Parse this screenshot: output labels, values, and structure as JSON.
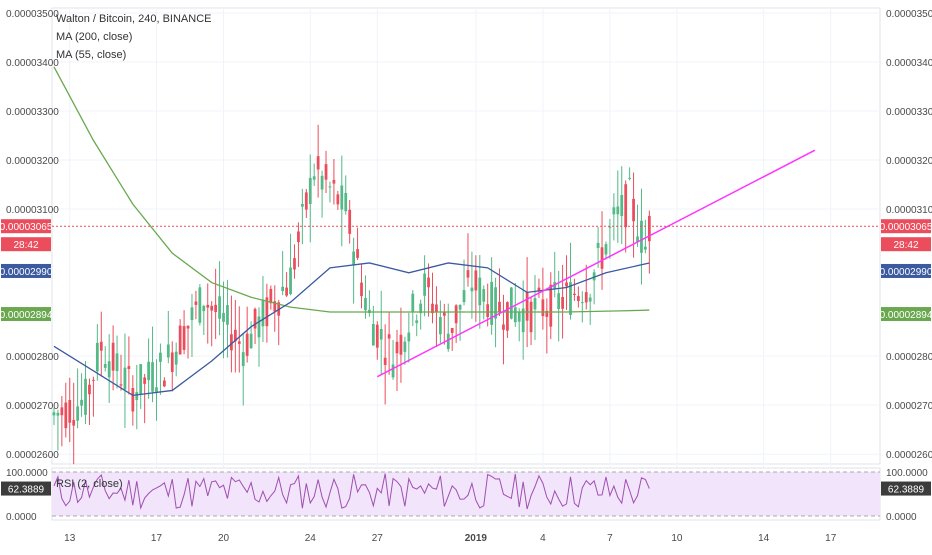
{
  "legend": {
    "title": "Walton / Bitcoin, 240, BINANCE",
    "ma1": "MA (200, close)",
    "ma2": "MA (55, close)",
    "rsi": "RSI (2, close)"
  },
  "colors": {
    "up": "#53b987",
    "down": "#eb4d5c",
    "ma200": "#6aa84f",
    "ma55": "#3c5aa0",
    "trendline": "#ff33ff",
    "rsi_line": "#a04fb0",
    "rsi_band": "#f1e4fb",
    "price_label": "#eb4d5c",
    "ma55_label": "#3c5aa0",
    "ma200_label": "#6aa84f",
    "rsi_label": "#3c3c3c"
  },
  "price_labels": {
    "current_price": "0.00003065",
    "countdown": "28:42",
    "ma55_value": "0.00002990",
    "ma200_value": "0.00002894",
    "rsi_value": "62.3889"
  },
  "chart_data": {
    "type": "candlestick",
    "title": "Walton / Bitcoin, 240, BINANCE",
    "ylim": [
      2.58e-05,
      3.51e-05
    ],
    "y_ticks": [
      "0.00003500",
      "0.00003400",
      "0.00003300",
      "0.00003200",
      "0.00003100",
      "0.00002800",
      "0.00002700",
      "0.00002600"
    ],
    "y_tick_values": [
      3.5e-05,
      3.4e-05,
      3.3e-05,
      3.2e-05,
      3.1e-05,
      2.8e-05,
      2.7e-05,
      2.6e-05
    ],
    "x_ticks": [
      "13",
      "17",
      "20",
      "24",
      "27",
      "2019",
      "4",
      "7",
      "10",
      "14",
      "17"
    ],
    "x_tick_positions": [
      4,
      26,
      43,
      65,
      82,
      107,
      124,
      141,
      158,
      180,
      197
    ],
    "series": [
      {
        "name": "MA (200, close)",
        "start_index": 0,
        "points": [
          [
            0,
            3.39e-05
          ],
          [
            10,
            3.24e-05
          ],
          [
            20,
            3.11e-05
          ],
          [
            30,
            3.01e-05
          ],
          [
            40,
            2.95e-05
          ],
          [
            50,
            2.92e-05
          ],
          [
            60,
            2.9e-05
          ],
          [
            70,
            2.89e-05
          ],
          [
            80,
            2.89e-05
          ],
          [
            90,
            2.89e-05
          ],
          [
            110,
            2.89e-05
          ],
          [
            130,
            2.89e-05
          ],
          [
            145,
            2.8925e-05
          ],
          [
            151,
            2.894e-05
          ]
        ]
      },
      {
        "name": "MA (55, close)",
        "start_index": 0,
        "points": [
          [
            0,
            2.82e-05
          ],
          [
            10,
            2.77e-05
          ],
          [
            20,
            2.72e-05
          ],
          [
            30,
            2.73e-05
          ],
          [
            40,
            2.79e-05
          ],
          [
            50,
            2.86e-05
          ],
          [
            60,
            2.91e-05
          ],
          [
            70,
            2.98e-05
          ],
          [
            80,
            2.99e-05
          ],
          [
            90,
            2.97e-05
          ],
          [
            100,
            2.99e-05
          ],
          [
            110,
            2.98e-05
          ],
          [
            120,
            2.93e-05
          ],
          [
            130,
            2.94e-05
          ],
          [
            140,
            2.97e-05
          ],
          [
            151,
            2.99e-05
          ]
        ]
      }
    ],
    "trendline": {
      "from": [
        82,
        2.758e-05
      ],
      "to": [
        193,
        3.22e-05
      ]
    },
    "ohlc_anchors": [
      [
        0,
        2.68e-05
      ],
      [
        8,
        2.71e-05
      ],
      [
        12,
        2.82e-05
      ],
      [
        20,
        2.73e-05
      ],
      [
        28,
        2.78e-05
      ],
      [
        38,
        2.92e-05
      ],
      [
        48,
        2.82e-05
      ],
      [
        60,
        2.96e-05
      ],
      [
        66,
        3.18e-05
      ],
      [
        74,
        3.1e-05
      ],
      [
        80,
        2.88e-05
      ],
      [
        86,
        2.8e-05
      ],
      [
        94,
        2.94e-05
      ],
      [
        100,
        2.85e-05
      ],
      [
        106,
        2.95e-05
      ],
      [
        112,
        2.9e-05
      ],
      [
        120,
        2.89e-05
      ],
      [
        128,
        2.91e-05
      ],
      [
        136,
        2.95e-05
      ],
      [
        142,
        3.07e-05
      ],
      [
        146,
        3.12e-05
      ],
      [
        150,
        3.02e-05
      ],
      [
        151,
        3.065e-05
      ]
    ],
    "rsi": {
      "ylim": [
        0,
        100
      ],
      "y_ticks": [
        "100.0000",
        "0.0000"
      ],
      "last": 62.3889
    }
  }
}
